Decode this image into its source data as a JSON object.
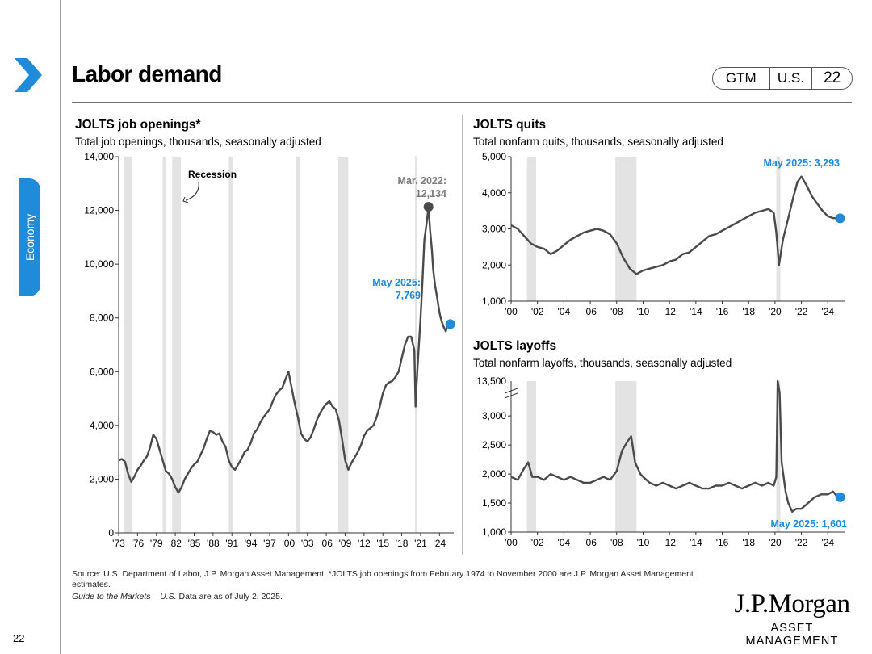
{
  "header": {
    "title": "Labor demand",
    "badges": [
      "GTM",
      "U.S.",
      "22"
    ],
    "side_tab": "Economy"
  },
  "footer": {
    "source": "Source: U.S. Department of Labor, J.P. Morgan Asset Management. *JOLTS job openings from February 1974 to November 2000 are J.P. Morgan Asset Management estimates.",
    "guide_italic": "Guide to the Markets – U.S.",
    "guide_rest": " Data are as of July 2, 2025.",
    "page_number": "22",
    "logo_name": "J.P.Morgan",
    "logo_sub": "ASSET MANAGEMENT"
  },
  "colors": {
    "accent": "#1f8bd9",
    "line": "#4a4a4a",
    "recession": "#e3e3e3",
    "peak": "#7a7a7a"
  },
  "chart_data": [
    {
      "type": "line",
      "title": "JOLTS job openings*",
      "subtitle": "Total job openings, thousands, seasonally adjusted",
      "xlim": [
        1973,
        2025.5
      ],
      "ylim": [
        0,
        14000
      ],
      "yticks": [
        0,
        2000,
        4000,
        6000,
        8000,
        10000,
        12000,
        14000
      ],
      "ytick_labels": [
        "0",
        "2,000",
        "4,000",
        "6,000",
        "8,000",
        "10,000",
        "12,000",
        "14,000"
      ],
      "xticks": [
        1973,
        1976,
        1979,
        1982,
        1985,
        1988,
        1991,
        1994,
        1997,
        2000,
        2003,
        2006,
        2009,
        2012,
        2015,
        2018,
        2021,
        2024
      ],
      "xtick_labels": [
        "'73",
        "'76",
        "'79",
        "'82",
        "'85",
        "'88",
        "'91",
        "'94",
        "'97",
        "'00",
        "'03",
        "'06",
        "'09",
        "'12",
        "'15",
        "'18",
        "'21",
        "'24"
      ],
      "recessions": [
        [
          1973.9,
          1975.2
        ],
        [
          1980.0,
          1980.5
        ],
        [
          1981.5,
          1982.9
        ],
        [
          1990.5,
          1991.2
        ],
        [
          2001.2,
          2001.9
        ],
        [
          2007.9,
          2009.5
        ],
        [
          2020.1,
          2020.4
        ]
      ],
      "recession_label": "Recession",
      "x": [
        1973.0,
        1973.5,
        1974.0,
        1974.5,
        1975.0,
        1975.5,
        1976.0,
        1976.5,
        1977.0,
        1977.5,
        1978.0,
        1978.5,
        1979.0,
        1979.5,
        1980.0,
        1980.5,
        1981.0,
        1981.5,
        1982.0,
        1982.5,
        1983.0,
        1983.5,
        1984.0,
        1984.5,
        1985.0,
        1985.5,
        1986.0,
        1986.5,
        1987.0,
        1987.5,
        1988.0,
        1988.5,
        1989.0,
        1989.5,
        1990.0,
        1990.5,
        1991.0,
        1991.5,
        1992.0,
        1992.5,
        1993.0,
        1993.5,
        1994.0,
        1994.5,
        1995.0,
        1995.5,
        1996.0,
        1996.5,
        1997.0,
        1997.5,
        1998.0,
        1998.5,
        1999.0,
        1999.5,
        2000.0,
        2000.5,
        2001.0,
        2001.5,
        2002.0,
        2002.5,
        2003.0,
        2003.5,
        2004.0,
        2004.5,
        2005.0,
        2005.5,
        2006.0,
        2006.5,
        2007.0,
        2007.5,
        2008.0,
        2008.5,
        2009.0,
        2009.5,
        2010.0,
        2010.5,
        2011.0,
        2011.5,
        2012.0,
        2012.5,
        2013.0,
        2013.5,
        2014.0,
        2014.5,
        2015.0,
        2015.5,
        2016.0,
        2016.5,
        2017.0,
        2017.5,
        2018.0,
        2018.5,
        2019.0,
        2019.5,
        2020.0,
        2020.2,
        2020.35,
        2020.6,
        2021.0,
        2021.3,
        2021.6,
        2022.0,
        2022.25,
        2022.5,
        2022.8,
        2023.0,
        2023.3,
        2023.6,
        2024.0,
        2024.3,
        2024.6,
        2025.0,
        2025.33
      ],
      "values": [
        2700,
        2750,
        2650,
        2200,
        1900,
        2100,
        2350,
        2500,
        2700,
        2850,
        3200,
        3650,
        3500,
        3100,
        2700,
        2300,
        2200,
        2000,
        1700,
        1500,
        1700,
        2000,
        2200,
        2400,
        2550,
        2650,
        2900,
        3150,
        3500,
        3800,
        3750,
        3650,
        3700,
        3400,
        3200,
        2700,
        2450,
        2350,
        2550,
        2750,
        3000,
        3100,
        3350,
        3700,
        3850,
        4100,
        4300,
        4450,
        4600,
        4900,
        5150,
        5300,
        5400,
        5700,
        6000,
        5400,
        4800,
        4300,
        3700,
        3500,
        3400,
        3550,
        3850,
        4200,
        4450,
        4650,
        4800,
        4900,
        4700,
        4600,
        4200,
        3500,
        2700,
        2350,
        2600,
        2800,
        3000,
        3250,
        3600,
        3800,
        3900,
        4000,
        4300,
        4700,
        5200,
        5500,
        5600,
        5650,
        5800,
        6000,
        6500,
        7000,
        7300,
        7300,
        6800,
        4700,
        5500,
        6500,
        8000,
        9400,
        10900,
        11600,
        12134,
        11300,
        10500,
        9800,
        9200,
        8800,
        8200,
        7900,
        7700,
        7500,
        7769
      ]
    },
    {
      "type": "line",
      "title": "JOLTS quits",
      "subtitle": "Total nonfarm quits, thousands, seasonally adjusted",
      "xlim": [
        2000,
        2024.9
      ],
      "ylim": [
        1000,
        5000
      ],
      "yticks": [
        1000,
        2000,
        3000,
        4000,
        5000
      ],
      "ytick_labels": [
        "1,000",
        "2,000",
        "3,000",
        "4,000",
        "5,000"
      ],
      "xticks": [
        2000,
        2002,
        2004,
        2006,
        2008,
        2010,
        2012,
        2014,
        2016,
        2018,
        2020,
        2022,
        2024
      ],
      "xtick_labels": [
        "'00",
        "'02",
        "'04",
        "'06",
        "'08",
        "'10",
        "'12",
        "'14",
        "'16",
        "'18",
        "'20",
        "'22",
        "'24"
      ],
      "recessions": [
        [
          2001.2,
          2001.9
        ],
        [
          2007.9,
          2009.5
        ],
        [
          2020.1,
          2020.4
        ]
      ],
      "x": [
        2000.0,
        2000.5,
        2001.0,
        2001.5,
        2002.0,
        2002.5,
        2003.0,
        2003.5,
        2004.0,
        2004.5,
        2005.0,
        2005.5,
        2006.0,
        2006.5,
        2007.0,
        2007.5,
        2008.0,
        2008.5,
        2009.0,
        2009.5,
        2010.0,
        2010.5,
        2011.0,
        2011.5,
        2012.0,
        2012.5,
        2013.0,
        2013.5,
        2014.0,
        2014.5,
        2015.0,
        2015.5,
        2016.0,
        2016.5,
        2017.0,
        2017.5,
        2018.0,
        2018.5,
        2019.0,
        2019.5,
        2019.9,
        2020.1,
        2020.3,
        2020.6,
        2021.0,
        2021.4,
        2021.7,
        2022.0,
        2022.4,
        2022.8,
        2023.2,
        2023.6,
        2024.0,
        2024.4,
        2024.75
      ],
      "values": [
        3100,
        3000,
        2800,
        2600,
        2500,
        2450,
        2300,
        2400,
        2550,
        2700,
        2800,
        2900,
        2950,
        3000,
        2950,
        2850,
        2600,
        2200,
        1900,
        1750,
        1850,
        1900,
        1950,
        2000,
        2100,
        2150,
        2300,
        2350,
        2500,
        2650,
        2800,
        2850,
        2950,
        3050,
        3150,
        3250,
        3350,
        3450,
        3500,
        3550,
        3450,
        2900,
        2000,
        2700,
        3300,
        3900,
        4300,
        4450,
        4200,
        3900,
        3700,
        3500,
        3350,
        3300,
        3293
      ]
    },
    {
      "type": "line",
      "title": "JOLTS layoffs",
      "subtitle": "Total nonfarm layoffs, thousands, seasonally adjusted",
      "xlim": [
        2000,
        2024.9
      ],
      "ylim": [
        1000,
        3600
      ],
      "yticks": [
        1000,
        1500,
        2000,
        2500,
        3000
      ],
      "ytick_labels": [
        "1,000",
        "1,500",
        "2,000",
        "2,500",
        "3,000"
      ],
      "top_label": "13,500",
      "axis_break": true,
      "xticks": [
        2000,
        2002,
        2004,
        2006,
        2008,
        2010,
        2012,
        2014,
        2016,
        2018,
        2020,
        2022,
        2024
      ],
      "xtick_labels": [
        "'00",
        "'02",
        "'04",
        "'06",
        "'08",
        "'10",
        "'12",
        "'14",
        "'16",
        "'18",
        "'20",
        "'22",
        "'24"
      ],
      "recessions": [
        [
          2001.2,
          2001.9
        ],
        [
          2007.9,
          2009.5
        ],
        [
          2020.1,
          2020.4
        ]
      ],
      "x": [
        2000.0,
        2000.5,
        2001.0,
        2001.3,
        2001.6,
        2002.0,
        2002.5,
        2003.0,
        2003.5,
        2004.0,
        2004.5,
        2005.0,
        2005.5,
        2006.0,
        2006.5,
        2007.0,
        2007.5,
        2008.0,
        2008.4,
        2008.8,
        2009.1,
        2009.4,
        2009.8,
        2010.0,
        2010.5,
        2011.0,
        2011.5,
        2012.0,
        2012.5,
        2013.0,
        2013.5,
        2014.0,
        2014.5,
        2015.0,
        2015.5,
        2016.0,
        2016.5,
        2017.0,
        2017.5,
        2018.0,
        2018.5,
        2019.0,
        2019.5,
        2019.9,
        2020.1,
        2020.2,
        2020.35,
        2020.5,
        2020.8,
        2021.0,
        2021.3,
        2021.6,
        2022.0,
        2022.5,
        2023.0,
        2023.5,
        2024.0,
        2024.4,
        2024.75
      ],
      "values": [
        1950,
        1900,
        2100,
        2200,
        1950,
        1950,
        1900,
        2000,
        1950,
        1900,
        1950,
        1900,
        1850,
        1850,
        1900,
        1950,
        1900,
        2050,
        2400,
        2550,
        2650,
        2200,
        2000,
        1950,
        1850,
        1800,
        1850,
        1800,
        1750,
        1800,
        1850,
        1800,
        1750,
        1750,
        1800,
        1800,
        1850,
        1800,
        1750,
        1800,
        1850,
        1800,
        1850,
        1800,
        1950,
        13500,
        3400,
        2200,
        1700,
        1500,
        1350,
        1400,
        1400,
        1500,
        1600,
        1650,
        1650,
        1700,
        1601
      ]
    }
  ],
  "annotations": {
    "openings_peak_line1": "Mar. 2022:",
    "openings_peak_line2": "12,134",
    "openings_last_line1": "May 2025:",
    "openings_last_line2": "7,769",
    "quits_last": "May 2025: 3,293",
    "layoffs_last": "May 2025: 1,601"
  }
}
